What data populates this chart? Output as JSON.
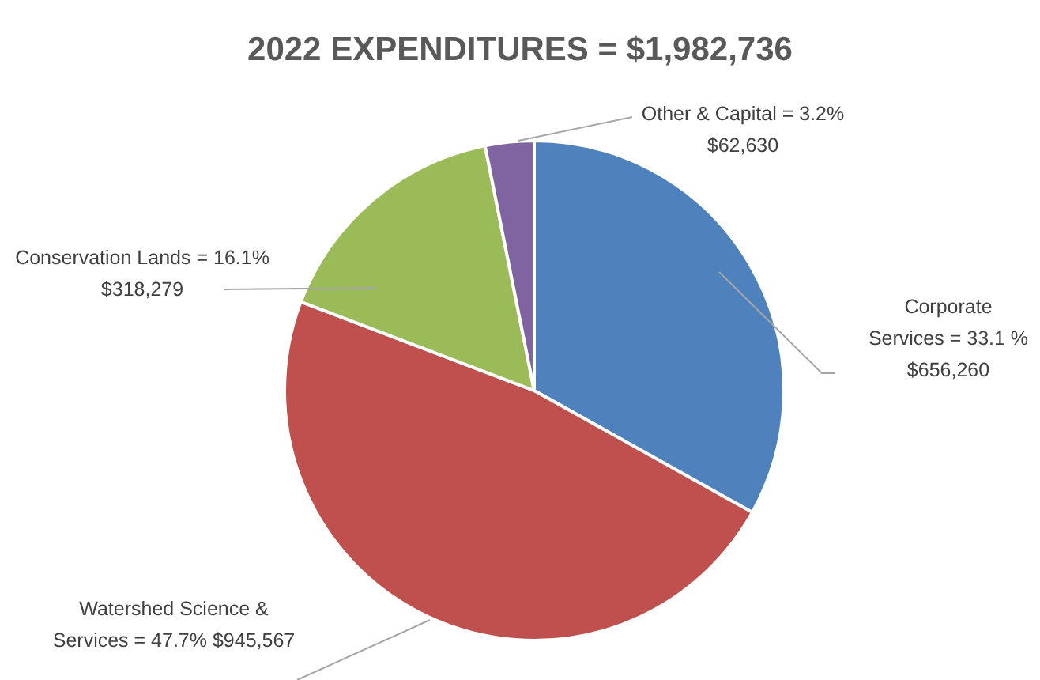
{
  "chart_data": {
    "type": "pie",
    "title": "2022 EXPENDITURES = $1,982,736",
    "categories": [
      "Corporate Services",
      "Watershed Science & Services",
      "Conservation Lands",
      "Other & Capital"
    ],
    "values": [
      656260,
      945567,
      318279,
      62630
    ],
    "colors": [
      "#4f81bd",
      "#c0504d",
      "#9bbb59",
      "#8064a2"
    ],
    "value_labels": [
      "= 33.1 % $656,260",
      "= 47.7% $945,567",
      "= 16.1% $318,279",
      "= 3.2% $62,630"
    ]
  }
}
